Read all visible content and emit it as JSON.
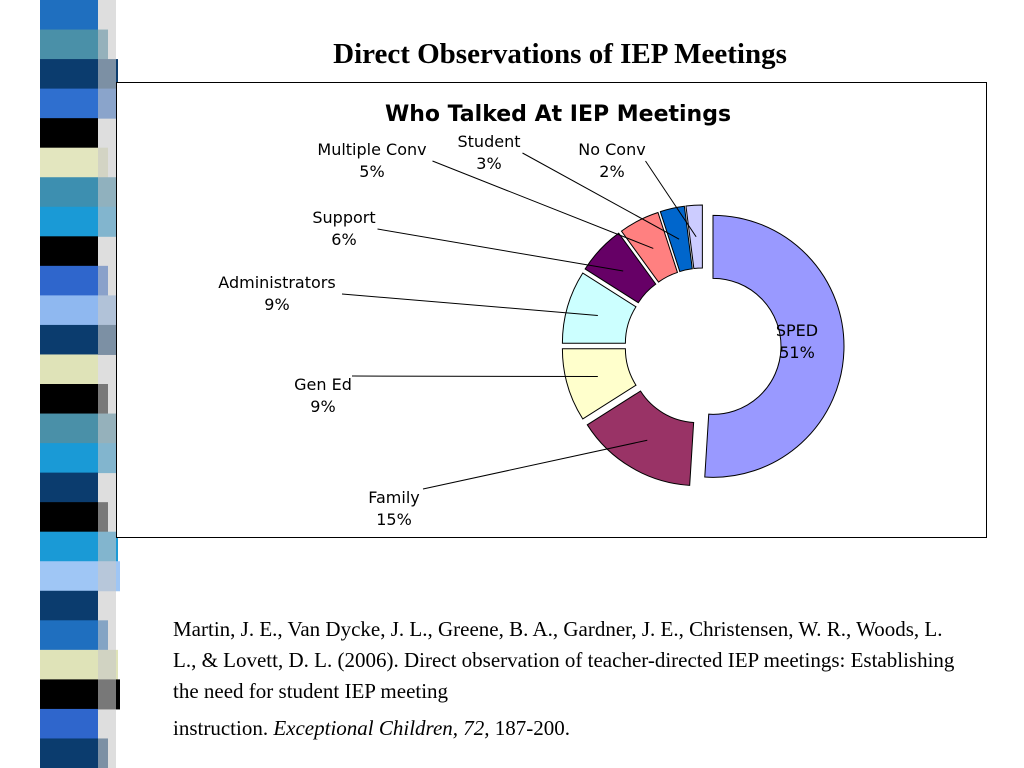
{
  "slide": {
    "title": "Direct Observations of IEP Meetings"
  },
  "stripe_colors": [
    "#1f6fbf",
    "#4a90a8",
    "#0b3c6e",
    "#2f6fcf",
    "#000000",
    "#e3e6bf",
    "#3d8fb0",
    "#1a9ad6",
    "#000000",
    "#2f66cc",
    "#8fb8f0",
    "#0b3c6e",
    "#dfe3b8",
    "#000000",
    "#4a90a8",
    "#1a9ad6",
    "#0b3c6e",
    "#000000",
    "#1a9ad6",
    "#9fc6f5",
    "#0b3c6e",
    "#1f6fbf",
    "#dfe3b8",
    "#000000",
    "#2f66cc",
    "#0b3c6e"
  ],
  "citation": {
    "main": "Martin, J. E., Van Dycke, J. L., Greene, B. A., Gardner, J. E., Christensen, W. R., Woods, L. L., & Lovett, D. L. (2006). Direct observation of teacher-directed IEP meetings: Establishing the need for student IEP meeting",
    "tail_plain": "instruction. ",
    "journal": "Exceptional Children, 72,",
    "pages": " 187-200."
  },
  "chart_data": {
    "type": "pie",
    "donut": true,
    "exploded": true,
    "title": "Who Talked At IEP Meetings",
    "slices": [
      {
        "label": "SPED",
        "value": 51,
        "value_label": "51%",
        "color": "#9999ff"
      },
      {
        "label": "Family",
        "value": 15,
        "value_label": "15%",
        "color": "#993366"
      },
      {
        "label": "Gen Ed",
        "value": 9,
        "value_label": "9%",
        "color": "#ffffcc"
      },
      {
        "label": "Administrators",
        "value": 9,
        "value_label": "9%",
        "color": "#ccffff"
      },
      {
        "label": "Support",
        "value": 6,
        "value_label": "6%",
        "color": "#660066"
      },
      {
        "label": "Multiple Conv",
        "value": 5,
        "value_label": "5%",
        "color": "#ff8080"
      },
      {
        "label": "Student",
        "value": 3,
        "value_label": "3%",
        "color": "#0066cc"
      },
      {
        "label": "No Conv",
        "value": 2,
        "value_label": "2%",
        "color": "#ccccff"
      }
    ],
    "legend": "none",
    "label_style": "category-and-percent with leader lines"
  }
}
